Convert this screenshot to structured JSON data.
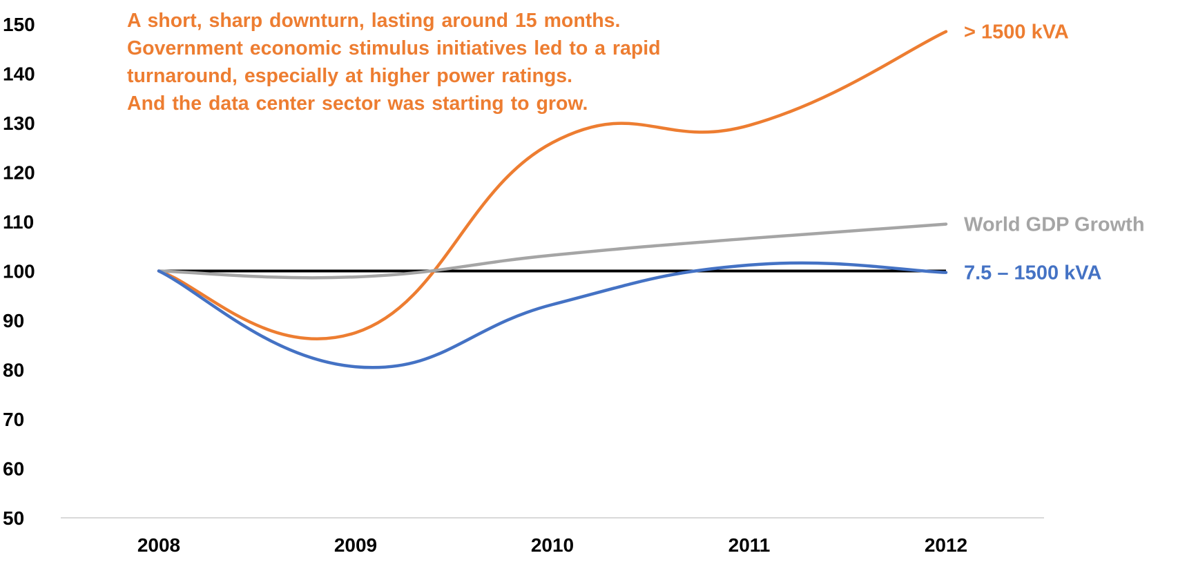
{
  "chart_data": {
    "type": "line",
    "categories": [
      "2008",
      "2009",
      "2010",
      "2011",
      "2012"
    ],
    "ylim": [
      50,
      150
    ],
    "yticks": [
      "150",
      "140",
      "130",
      "120",
      "110",
      "100",
      "90",
      "80",
      "70",
      "60",
      "50"
    ],
    "grid": false,
    "reference_line": 100,
    "series": [
      {
        "name": "> 1500 kVA",
        "color": "#ED7D31",
        "values": [
          100,
          87.5,
          126,
          129.5,
          148.5
        ]
      },
      {
        "name": "World GDP Growth",
        "color": "#A5A5A5",
        "values": [
          100,
          98.8,
          103.2,
          106.6,
          109.5
        ]
      },
      {
        "name": "7.5 – 1500 kVA",
        "color": "#4472C4",
        "values": [
          100,
          80.6,
          93.2,
          101.2,
          99.7
        ]
      }
    ],
    "annotation": [
      "A short, sharp downturn, lasting around 15 months.",
      "Government economic stimulus initiatives led to a rapid",
      "turnaround, especially at higher power ratings.",
      "And the data center sector was starting to grow."
    ]
  }
}
